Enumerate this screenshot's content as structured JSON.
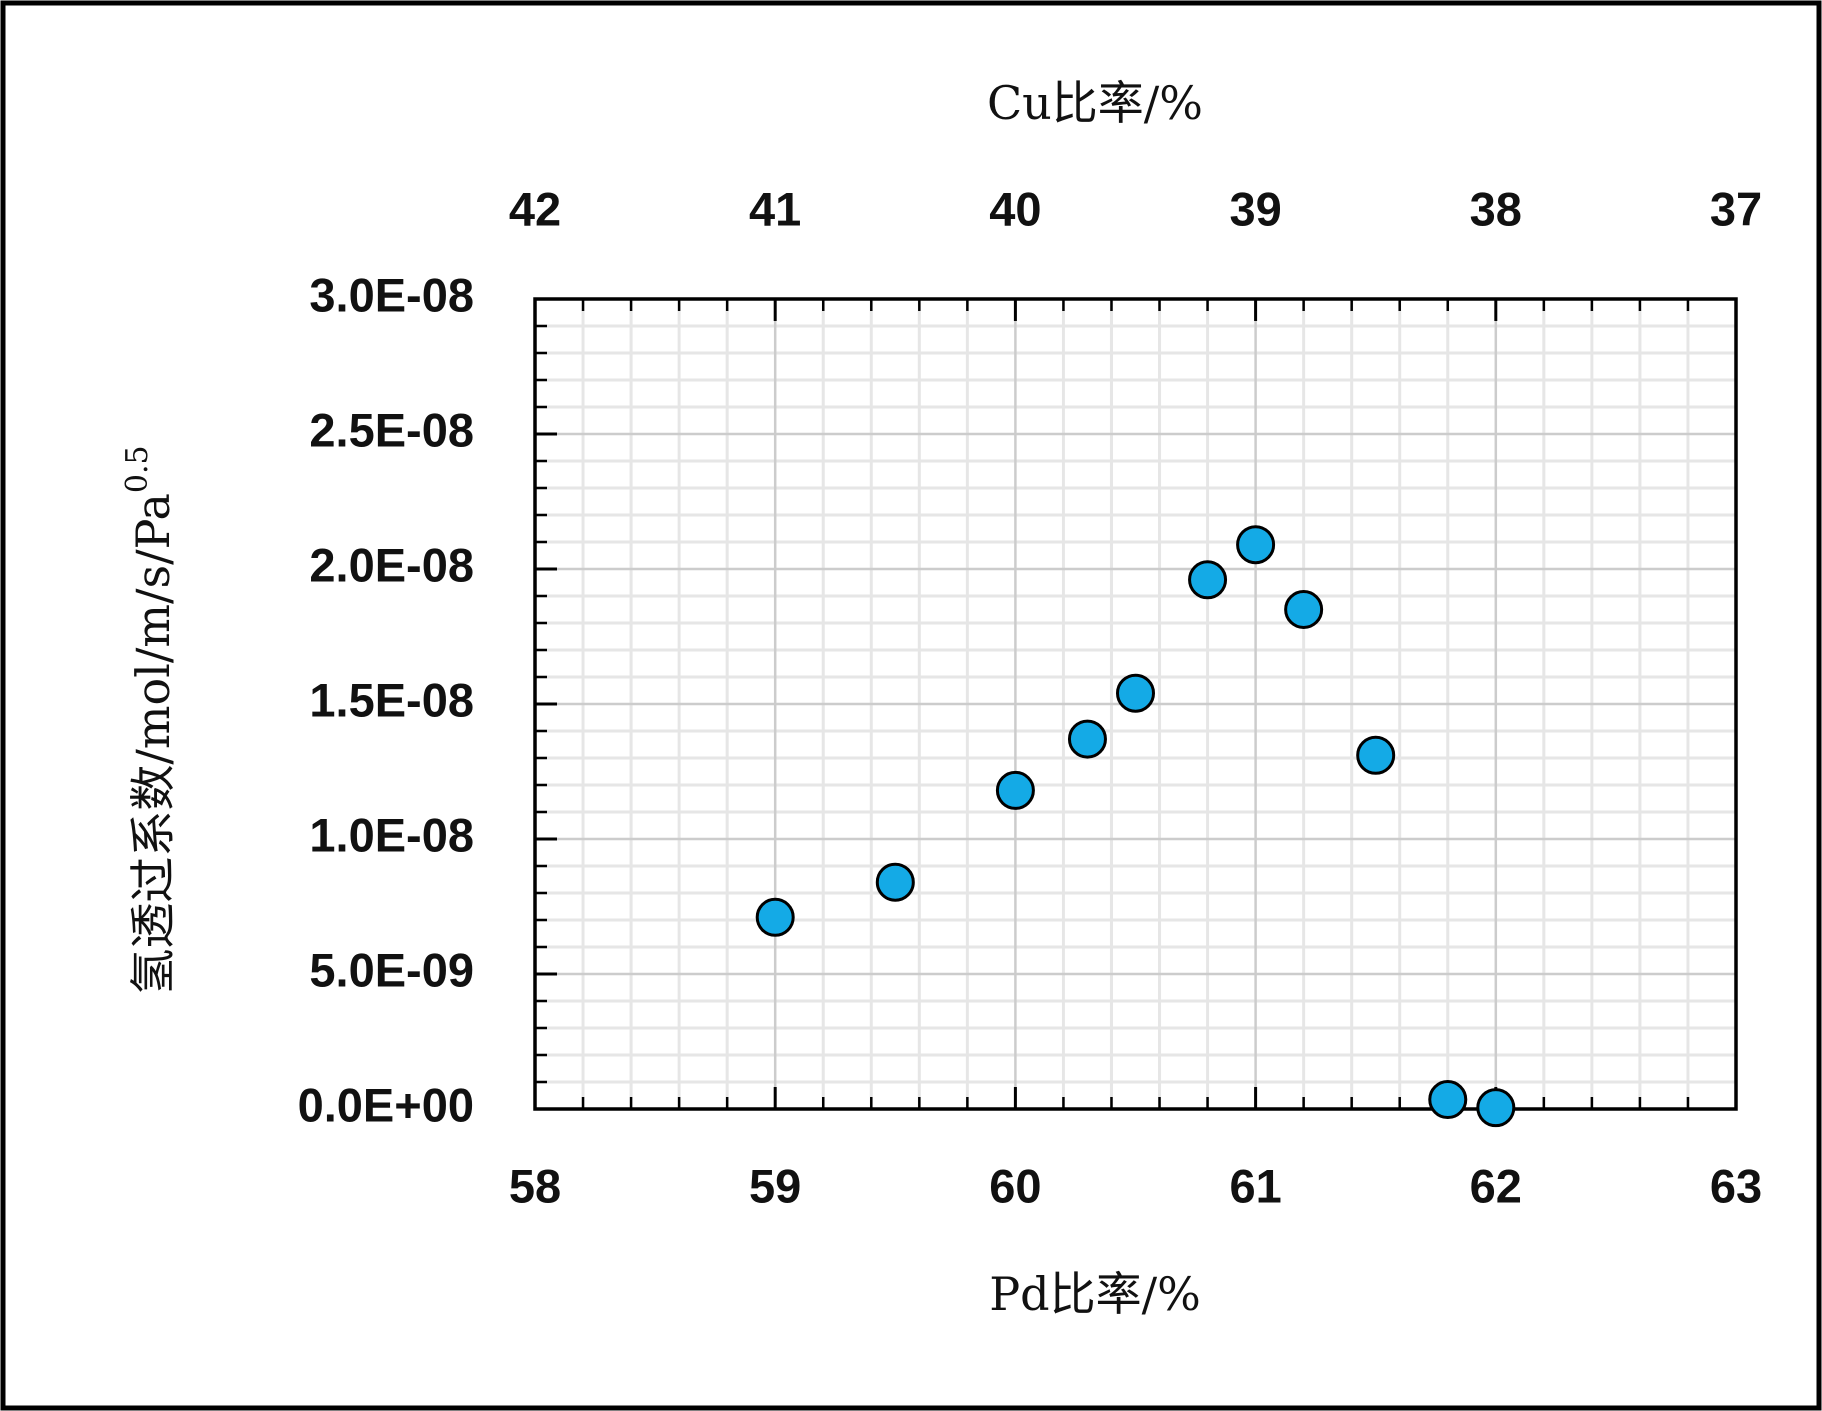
{
  "chart_data": {
    "type": "scatter",
    "x_label": "Pd比率/%",
    "x2_label": "Cu比率/%",
    "y_label": {
      "text": "氢透过系数/mol/m/s/Pa",
      "sup": "0.5"
    },
    "x": [
      59.0,
      59.5,
      60.0,
      60.3,
      60.5,
      60.8,
      61.0,
      61.2,
      61.5,
      61.8,
      62.0
    ],
    "series": [
      {
        "color": "#14aae6",
        "values": [
          7.1e-09,
          8.4e-09,
          1.18e-08,
          1.37e-08,
          1.54e-08,
          1.96e-08,
          2.09e-08,
          1.85e-08,
          1.31e-08,
          3.5e-10,
          5e-11
        ]
      }
    ],
    "xlim": [
      58,
      63
    ],
    "xticks": [
      58,
      59,
      60,
      61,
      62,
      63
    ],
    "x2lim": [
      42,
      37
    ],
    "x2ticks": [
      42,
      41,
      40,
      39,
      38,
      37
    ],
    "ylim": [
      0,
      3e-08
    ],
    "yticks": [
      {
        "value": 0,
        "label": "0.0E+00"
      },
      {
        "value": 5e-09,
        "label": "5.0E-09"
      },
      {
        "value": 1e-08,
        "label": "1.0E-08"
      },
      {
        "value": 1.5e-08,
        "label": "1.5E-08"
      },
      {
        "value": 2e-08,
        "label": "2.0E-08"
      },
      {
        "value": 2.5e-08,
        "label": "2.5E-08"
      },
      {
        "value": 3e-08,
        "label": "3.0E-08"
      }
    ],
    "grid": true,
    "minor_grid": true
  }
}
